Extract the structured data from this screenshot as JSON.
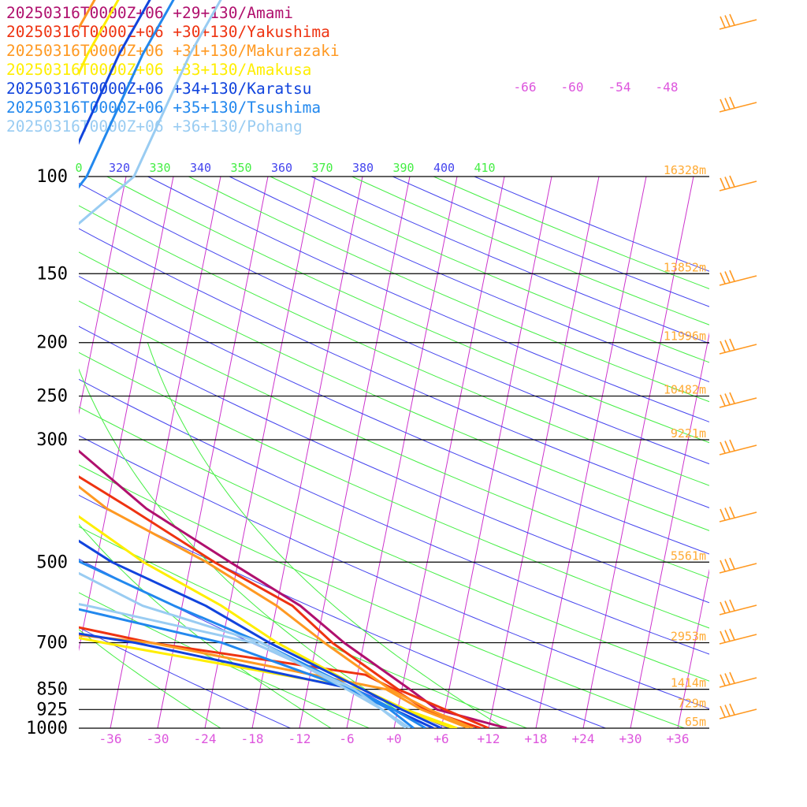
{
  "chart_data": {
    "type": "line",
    "chart_kind": "skew-T log-P sounding",
    "pressure_levels": [
      100,
      150,
      200,
      250,
      300,
      500,
      700,
      850,
      925,
      1000
    ],
    "pressure_labels": [
      "100",
      "150",
      "200",
      "250",
      "300",
      "500",
      "700",
      "850",
      "925",
      "1000"
    ],
    "height_labels": [
      {
        "p": 100,
        "label": "16328m"
      },
      {
        "p": 150,
        "label": "13852m"
      },
      {
        "p": 200,
        "label": "11996m"
      },
      {
        "p": 250,
        "label": "10482m"
      },
      {
        "p": 300,
        "label": "9221m"
      },
      {
        "p": 500,
        "label": "5561m"
      },
      {
        "p": 700,
        "label": "2953m"
      },
      {
        "p": 850,
        "label": "1414m"
      },
      {
        "p": 925,
        "label": "729m"
      },
      {
        "p": 1000,
        "label": "65m"
      }
    ],
    "temperature_ticks": [
      "-36",
      "-30",
      "-24",
      "-18",
      "-12",
      "-6",
      "+0",
      "+6",
      "+12",
      "+18",
      "+24",
      "+30",
      "+36"
    ],
    "upper_temperature_labels": [
      "-66",
      "-60",
      "-54",
      "-48"
    ],
    "theta_labels": [
      "0",
      "320",
      "330",
      "340",
      "350",
      "360",
      "370",
      "380",
      "390",
      "400",
      "410"
    ],
    "xlim": [
      -40,
      40
    ],
    "ylim": [
      1000,
      100
    ],
    "y_scale": "log",
    "grid": true,
    "legend_position": "top-left",
    "series": [
      {
        "name": "20250316T0000Z+06 +29+130/Amami",
        "color": "#b0106e",
        "temperature": [
          [
            100,
            -70
          ],
          [
            125,
            -74
          ],
          [
            150,
            -71
          ],
          [
            200,
            -68
          ],
          [
            250,
            -58
          ],
          [
            300,
            -49
          ],
          [
            400,
            -37
          ],
          [
            500,
            -25
          ],
          [
            600,
            -15
          ],
          [
            700,
            -8.5
          ],
          [
            850,
            1
          ],
          [
            925,
            5
          ],
          [
            1000,
            14.3
          ]
        ]
      },
      {
        "name": "20250316T0000Z+06 +30+130/Yakushima",
        "color": "#ee3311",
        "temperature": [
          [
            100,
            -68
          ],
          [
            125,
            -73
          ],
          [
            150,
            -70
          ],
          [
            200,
            -66
          ],
          [
            250,
            -57
          ],
          [
            270,
            -53.5
          ],
          [
            300,
            -51
          ],
          [
            340,
            -48
          ],
          [
            400,
            -39
          ],
          [
            500,
            -27
          ],
          [
            600,
            -16
          ],
          [
            700,
            -10
          ],
          [
            850,
            -0.5
          ],
          [
            925,
            6
          ],
          [
            1000,
            12
          ]
        ],
        "dewpoint": [
          [
            300,
            -67
          ],
          [
            380,
            -59
          ],
          [
            440,
            -55
          ],
          [
            500,
            -55
          ],
          [
            600,
            -56
          ],
          [
            700,
            -33
          ],
          [
            800,
            -5
          ],
          [
            850,
            -1
          ],
          [
            925,
            3.5
          ],
          [
            1000,
            11
          ]
        ]
      },
      {
        "name": "20250316T0000Z+06 +31+130/Makurazaki",
        "color": "#ff9922",
        "temperature": [
          [
            100,
            -63
          ],
          [
            140,
            -71
          ],
          [
            200,
            -65
          ],
          [
            250,
            -56
          ],
          [
            290,
            -52
          ],
          [
            350,
            -48
          ],
          [
            400,
            -42
          ],
          [
            500,
            -28
          ],
          [
            600,
            -18
          ],
          [
            700,
            -11
          ],
          [
            850,
            -1.5
          ],
          [
            925,
            4
          ],
          [
            1000,
            10
          ]
        ],
        "dewpoint": [
          [
            300,
            -68
          ],
          [
            370,
            -64
          ],
          [
            430,
            -62
          ],
          [
            500,
            -57
          ],
          [
            600,
            -78
          ],
          [
            700,
            -33
          ],
          [
            850,
            -2
          ],
          [
            925,
            3
          ],
          [
            1000,
            9.5
          ]
        ]
      },
      {
        "name": "20250316T0000Z+06 +33+130/Amakusa",
        "color": "#ffee00",
        "temperature": [
          [
            100,
            -60
          ],
          [
            150,
            -66
          ],
          [
            200,
            -63
          ],
          [
            250,
            -56
          ],
          [
            300,
            -53
          ],
          [
            350,
            -51
          ],
          [
            400,
            -47
          ],
          [
            500,
            -36
          ],
          [
            600,
            -25
          ],
          [
            700,
            -17
          ],
          [
            850,
            -5
          ],
          [
            925,
            1
          ],
          [
            1000,
            8
          ]
        ],
        "dewpoint": [
          [
            300,
            -84
          ],
          [
            350,
            -76
          ],
          [
            410,
            -69
          ],
          [
            500,
            -68
          ],
          [
            600,
            -64
          ],
          [
            700,
            -39
          ],
          [
            850,
            -5
          ],
          [
            925,
            0.5
          ],
          [
            1000,
            7.5
          ]
        ]
      },
      {
        "name": "20250316T0000Z+06 +34+130/Karatsu",
        "color": "#1144dd",
        "temperature": [
          [
            100,
            -56
          ],
          [
            140,
            -66
          ],
          [
            200,
            -63
          ],
          [
            250,
            -58
          ],
          [
            300,
            -56
          ],
          [
            350,
            -55
          ],
          [
            400,
            -52
          ],
          [
            500,
            -40
          ],
          [
            600,
            -27
          ],
          [
            700,
            -18
          ],
          [
            850,
            -5
          ],
          [
            925,
            0.5
          ],
          [
            1000,
            6
          ]
        ],
        "dewpoint": [
          [
            300,
            -87
          ],
          [
            350,
            -79
          ],
          [
            410,
            -67
          ],
          [
            500,
            -85
          ],
          [
            600,
            -65
          ],
          [
            700,
            -35
          ],
          [
            850,
            -6
          ],
          [
            925,
            -0.5
          ],
          [
            1000,
            5
          ]
        ]
      },
      {
        "name": "20250316T0000Z+06 +35+130/Tsushima",
        "color": "#2288ee",
        "temperature": [
          [
            100,
            -53
          ],
          [
            150,
            -60
          ],
          [
            200,
            -62
          ],
          [
            250,
            -60
          ],
          [
            300,
            -59
          ],
          [
            350,
            -58
          ],
          [
            400,
            -55
          ],
          [
            500,
            -44
          ],
          [
            600,
            -31
          ],
          [
            700,
            -19
          ],
          [
            850,
            -6
          ],
          [
            925,
            -0.5
          ],
          [
            1000,
            4
          ]
        ],
        "dewpoint": [
          [
            300,
            -82
          ],
          [
            410,
            -81
          ],
          [
            500,
            -89
          ],
          [
            600,
            -45
          ],
          [
            700,
            -24
          ],
          [
            850,
            -6.5
          ],
          [
            925,
            -1
          ],
          [
            1000,
            2.5
          ]
        ]
      },
      {
        "name": "20250316T0000Z+06 +36+130/Pohang",
        "color": "#99ccf2",
        "temperature": [
          [
            100,
            -47
          ],
          [
            150,
            -59
          ],
          [
            200,
            -62
          ],
          [
            250,
            -62
          ],
          [
            300,
            -63
          ],
          [
            350,
            -61
          ],
          [
            400,
            -58
          ],
          [
            500,
            -47
          ],
          [
            600,
            -35
          ],
          [
            700,
            -19
          ],
          [
            850,
            -7
          ],
          [
            925,
            -2
          ],
          [
            1000,
            2
          ]
        ],
        "dewpoint": [
          [
            300,
            -78
          ],
          [
            410,
            -92
          ],
          [
            500,
            -73
          ],
          [
            600,
            -42
          ],
          [
            700,
            -20
          ],
          [
            850,
            -6
          ],
          [
            925,
            -2
          ],
          [
            1000,
            1.5
          ]
        ]
      }
    ]
  }
}
